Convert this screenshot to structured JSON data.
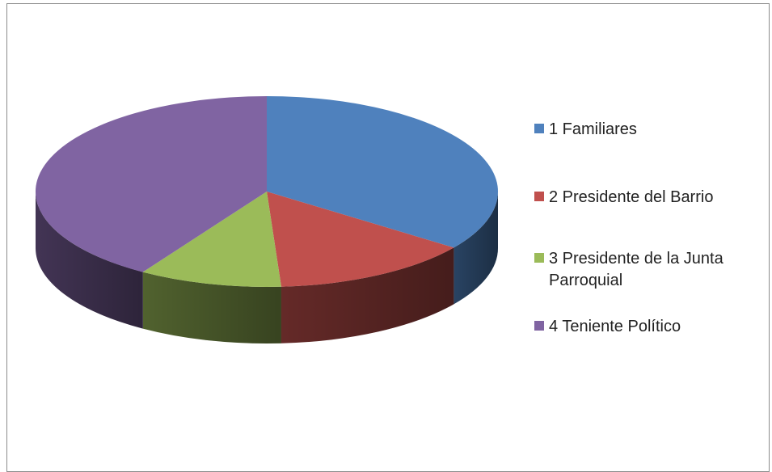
{
  "chart_data": {
    "type": "pie",
    "style": "3d",
    "categories": [
      "1 Familiares",
      "2 Presidente del Barrio",
      "3 Presidente de la Junta Parroquial",
      "4 Teniente Político"
    ],
    "values": [
      35,
      14,
      10,
      41
    ],
    "colors": [
      "#4f81bd",
      "#c0504d",
      "#9bbb59",
      "#8064a2"
    ],
    "legend_position": "right"
  },
  "legend": {
    "items": [
      {
        "label": "1 Familiares",
        "color": "#4f81bd"
      },
      {
        "label": "2 Presidente del Barrio",
        "color": "#c0504d"
      },
      {
        "label": "3 Presidente de la Junta Parroquial",
        "color": "#9bbb59"
      },
      {
        "label": "4 Teniente Político",
        "color": "#8064a2"
      }
    ]
  }
}
